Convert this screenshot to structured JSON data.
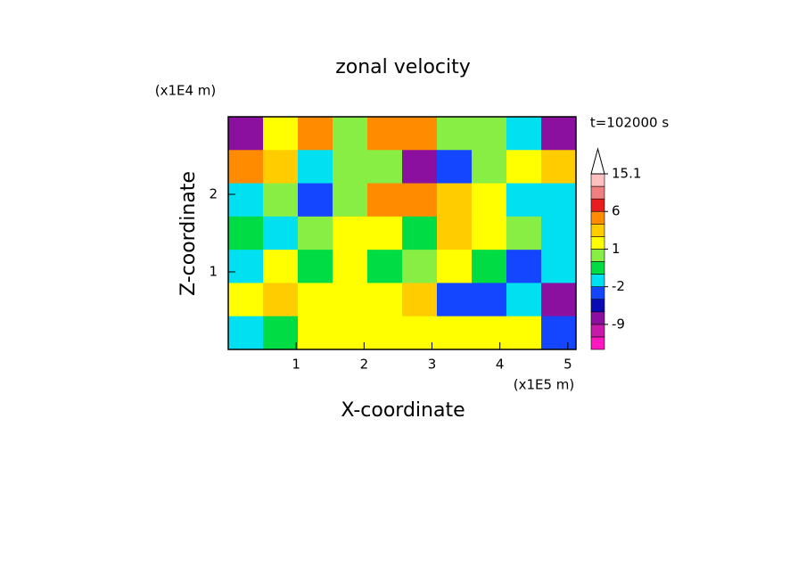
{
  "chart_data": {
    "type": "contour",
    "title": "zonal velocity",
    "xlabel": "X-coordinate",
    "ylabel": "Z-coordinate",
    "xunit": "(x1E5 m)",
    "yunit": "(x1E4 m)",
    "annotation": "t=102000 s",
    "xlim": [
      0,
      5.12
    ],
    "ylim": [
      0,
      3
    ],
    "xticks": [
      1,
      2,
      3,
      4,
      5
    ],
    "yticks": [
      1,
      2
    ],
    "levels": [
      -15,
      -12,
      -9,
      -6,
      -4,
      -2,
      -1,
      0,
      1,
      2,
      4,
      6,
      9,
      12,
      15.1
    ],
    "colors": [
      "#ff17c0",
      "#c81aa8",
      "#8c10a0",
      "#0a0ab4",
      "#1446ff",
      "#00e0f0",
      "#00dd44",
      "#88ee44",
      "#ffff00",
      "#ffcc00",
      "#ff8c00",
      "#e81e1e",
      "#f08080",
      "#ffc0c0"
    ],
    "extend_color": "#ffffff",
    "cbar_ticks": [
      15.1,
      6,
      1,
      -2,
      -9
    ],
    "z": [
      [
        -8,
        2,
        5,
        1,
        6,
        5,
        1,
        1,
        -1,
        -6
      ],
      [
        6,
        4,
        -1,
        0.5,
        1,
        -6,
        -2,
        0.5,
        1.5,
        3
      ],
      [
        -1,
        0.5,
        -2,
        1,
        5,
        5,
        3,
        1.5,
        -1,
        -1
      ],
      [
        -0.5,
        -1.5,
        1,
        1.5,
        1.5,
        -0.5,
        4,
        1.5,
        0.5,
        -1
      ],
      [
        -1,
        1.5,
        -0.5,
        1.5,
        -0.5,
        0.5,
        1.5,
        -0.5,
        -2.5,
        -1
      ],
      [
        1.5,
        4,
        1.5,
        1.5,
        1.5,
        4,
        -2.5,
        -2.5,
        -1,
        -8
      ],
      [
        -1,
        -0.5,
        1.5,
        1.5,
        1.5,
        1.5,
        1.5,
        1.5,
        1.5,
        -2
      ]
    ]
  }
}
